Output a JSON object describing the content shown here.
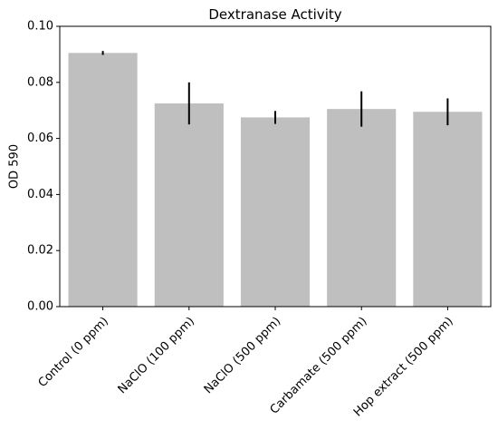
{
  "chart_data": {
    "type": "bar",
    "title": "Dextranase Activity",
    "xlabel": "",
    "ylabel": "OD 590",
    "ylim": [
      0,
      0.1
    ],
    "yticks": [
      "0.00",
      "0.02",
      "0.04",
      "0.06",
      "0.08",
      "0.10"
    ],
    "categories": [
      "Control (0 ppm)",
      "NaClO (100 ppm)",
      "NaClO (500 ppm)",
      "Carbamate (500 ppm)",
      "Hop extract (500 ppm)"
    ],
    "values": [
      0.0905,
      0.0725,
      0.0675,
      0.0705,
      0.0695
    ],
    "errors": [
      0.0007,
      0.0075,
      0.0023,
      0.0063,
      0.0048
    ],
    "grid": false,
    "legend": "none",
    "bar_color": "#bfbfbf",
    "error_color": "#000000"
  }
}
